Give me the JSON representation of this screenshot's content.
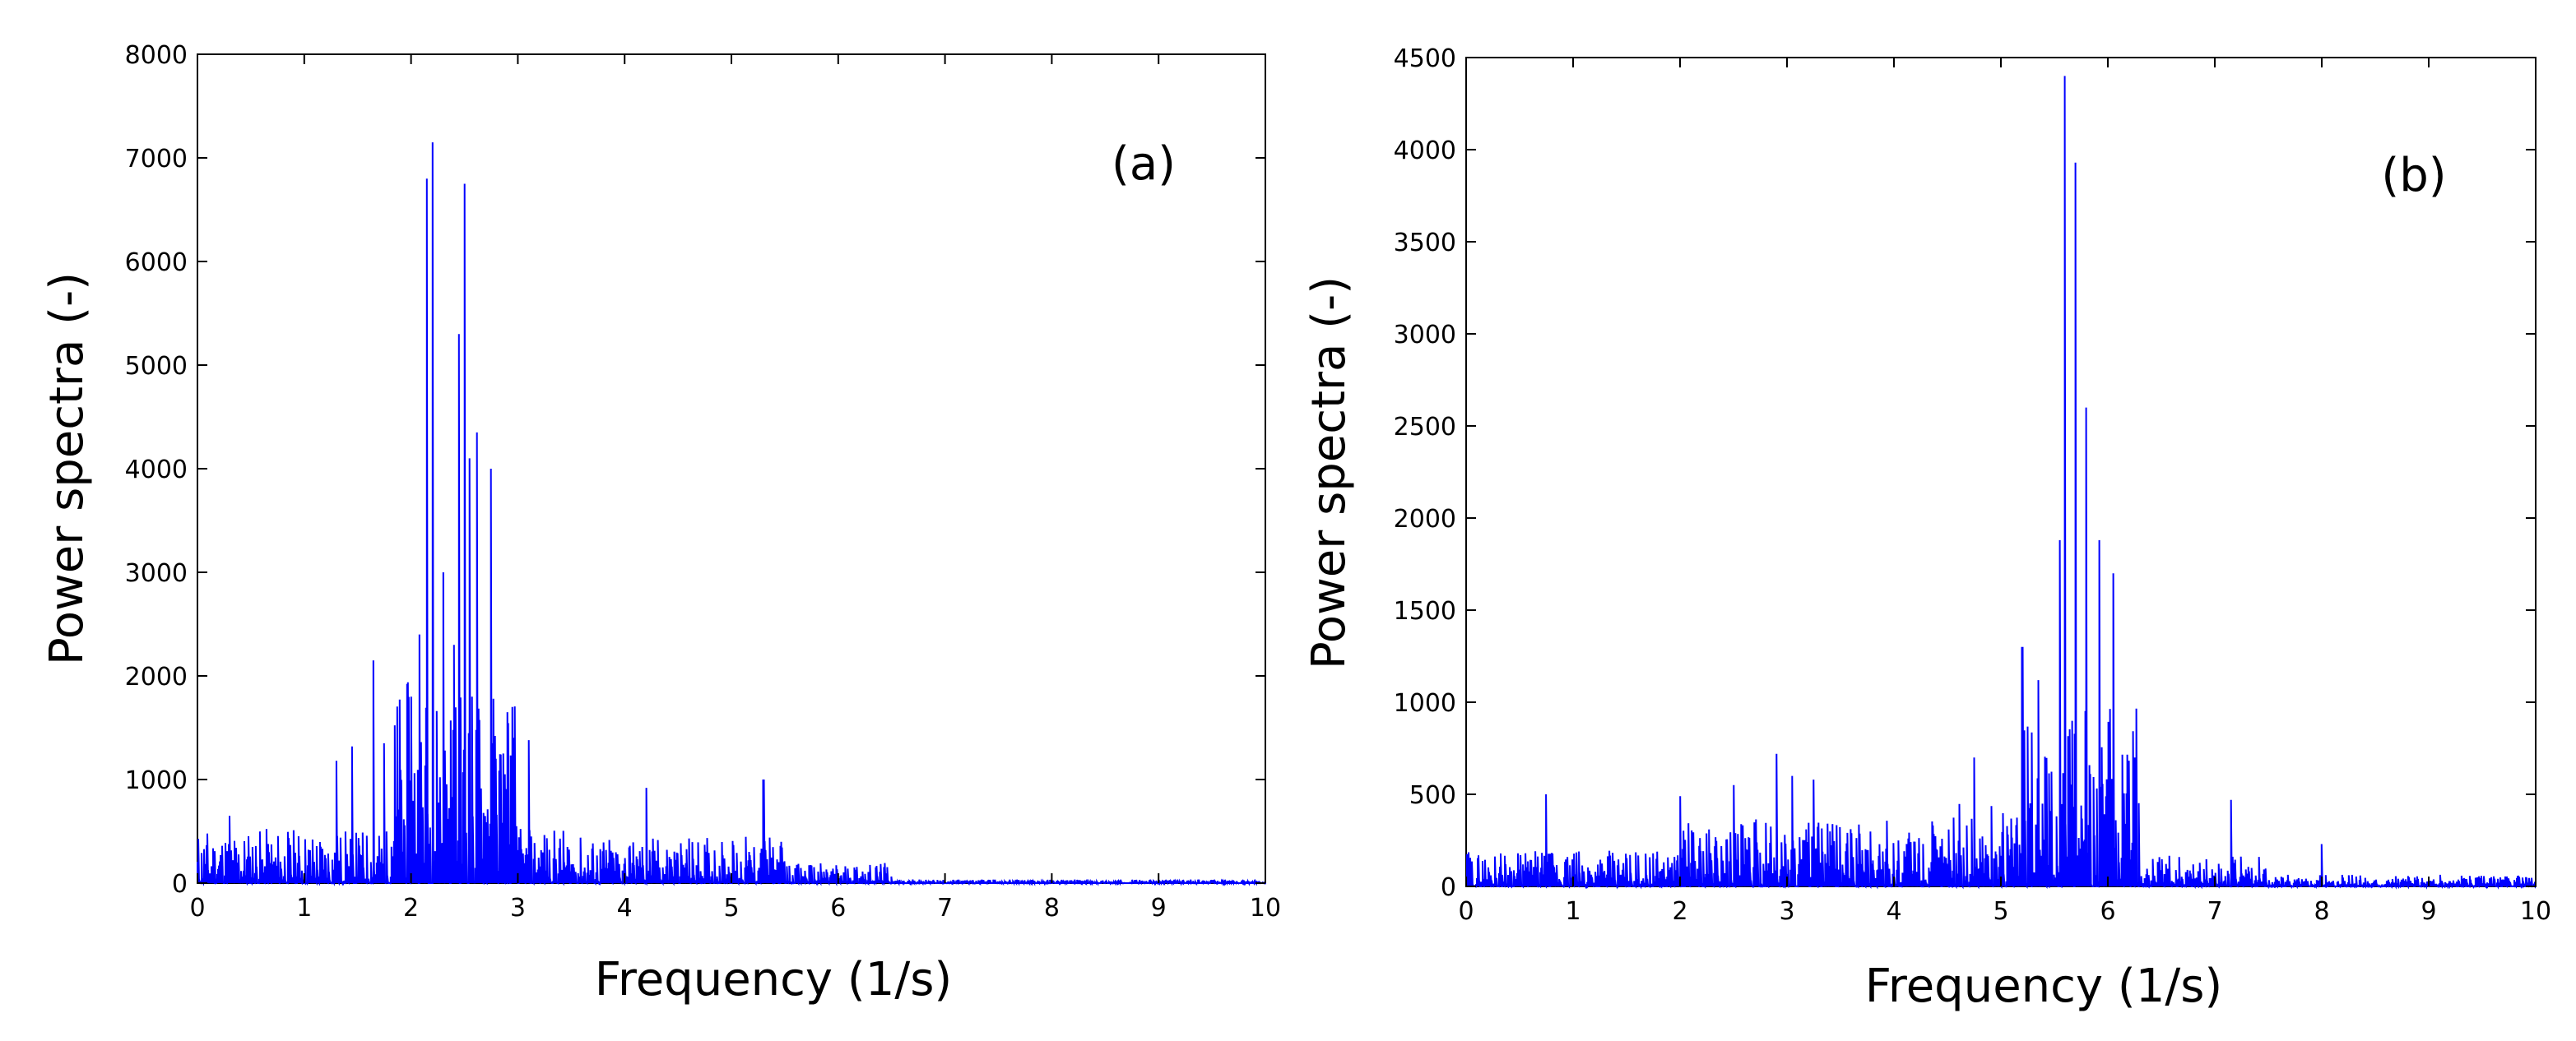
{
  "chart_data": [
    {
      "type": "line",
      "panel_label": "(a)",
      "xlabel": "Frequency (1/s)",
      "ylabel": "Power spectra (-)",
      "xlim": [
        0,
        10
      ],
      "ylim": [
        0,
        8000
      ],
      "xticks": [
        0,
        1,
        2,
        3,
        4,
        5,
        6,
        7,
        8,
        9,
        10
      ],
      "yticks": [
        0,
        1000,
        2000,
        3000,
        4000,
        5000,
        6000,
        7000,
        8000
      ],
      "series_color": "#0000ff",
      "grid": false,
      "peaks": [
        {
          "x": 0.3,
          "y": 650
        },
        {
          "x": 1.3,
          "y": 1180
        },
        {
          "x": 1.45,
          "y": 1320
        },
        {
          "x": 1.65,
          "y": 2150
        },
        {
          "x": 1.75,
          "y": 1350
        },
        {
          "x": 2.0,
          "y": 1800
        },
        {
          "x": 2.08,
          "y": 2400
        },
        {
          "x": 2.15,
          "y": 6800
        },
        {
          "x": 2.2,
          "y": 7150
        },
        {
          "x": 2.3,
          "y": 3000
        },
        {
          "x": 2.4,
          "y": 2300
        },
        {
          "x": 2.45,
          "y": 5300
        },
        {
          "x": 2.5,
          "y": 6750
        },
        {
          "x": 2.55,
          "y": 4100
        },
        {
          "x": 2.62,
          "y": 4350
        },
        {
          "x": 2.75,
          "y": 4000
        },
        {
          "x": 2.9,
          "y": 1650
        },
        {
          "x": 3.1,
          "y": 1380
        },
        {
          "x": 4.2,
          "y": 920
        },
        {
          "x": 5.3,
          "y": 1000
        }
      ]
    },
    {
      "type": "line",
      "panel_label": "(b)",
      "xlabel": "Frequency (1/s)",
      "ylabel": "Power spectra (-)",
      "xlim": [
        0,
        10
      ],
      "ylim": [
        0,
        4500
      ],
      "xticks": [
        0,
        1,
        2,
        3,
        4,
        5,
        6,
        7,
        8,
        9,
        10
      ],
      "yticks": [
        0,
        500,
        1000,
        1500,
        2000,
        2500,
        3000,
        3500,
        4000,
        4500
      ],
      "series_color": "#0000ff",
      "grid": false,
      "peaks": [
        {
          "x": 0.75,
          "y": 500
        },
        {
          "x": 2.0,
          "y": 490
        },
        {
          "x": 2.5,
          "y": 550
        },
        {
          "x": 2.9,
          "y": 720
        },
        {
          "x": 3.05,
          "y": 600
        },
        {
          "x": 3.25,
          "y": 580
        },
        {
          "x": 4.75,
          "y": 700
        },
        {
          "x": 5.2,
          "y": 1300
        },
        {
          "x": 5.35,
          "y": 1120
        },
        {
          "x": 5.55,
          "y": 1880
        },
        {
          "x": 5.6,
          "y": 4400
        },
        {
          "x": 5.7,
          "y": 3930
        },
        {
          "x": 5.8,
          "y": 2600
        },
        {
          "x": 5.92,
          "y": 1880
        },
        {
          "x": 6.05,
          "y": 1700
        },
        {
          "x": 6.25,
          "y": 700
        },
        {
          "x": 7.15,
          "y": 470
        },
        {
          "x": 8.0,
          "y": 230
        }
      ]
    }
  ]
}
